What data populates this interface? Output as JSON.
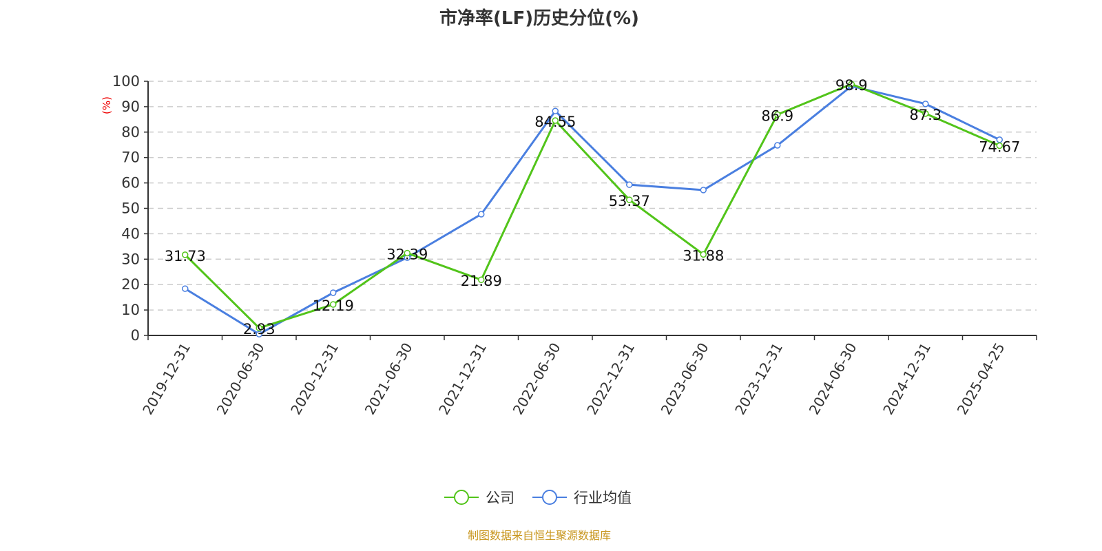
{
  "chart_data": {
    "type": "line",
    "title": "市净率(LF)历史分位(%)",
    "ylabel": "(%)",
    "xlabel": "",
    "ylim": [
      0,
      100
    ],
    "yticks": [
      "0",
      "10",
      "20",
      "30",
      "40",
      "50",
      "60",
      "70",
      "80",
      "90",
      "100"
    ],
    "grid": true,
    "legend_position": "bottom",
    "categories": [
      "2019-12-31",
      "2020-06-30",
      "2020-12-31",
      "2021-06-30",
      "2021-12-31",
      "2022-06-30",
      "2022-12-31",
      "2023-06-30",
      "2023-12-31",
      "2024-06-30",
      "2024-12-31",
      "2025-04-25"
    ],
    "series": [
      {
        "name": "公司",
        "color": "#52c41a",
        "labels": true,
        "values": [
          31.73,
          2.93,
          12.19,
          32.39,
          21.89,
          84.55,
          53.37,
          31.88,
          86.9,
          98.9,
          87.3,
          74.67
        ]
      },
      {
        "name": "行业均值",
        "color": "#4a7fe0",
        "labels": false,
        "values": [
          18.4,
          0.5,
          16.8,
          30.6,
          47.7,
          88.3,
          59.3,
          57.2,
          74.8,
          98.1,
          91.1,
          77.0
        ]
      }
    ],
    "source": "制图数据来自恒生聚源数据库"
  }
}
